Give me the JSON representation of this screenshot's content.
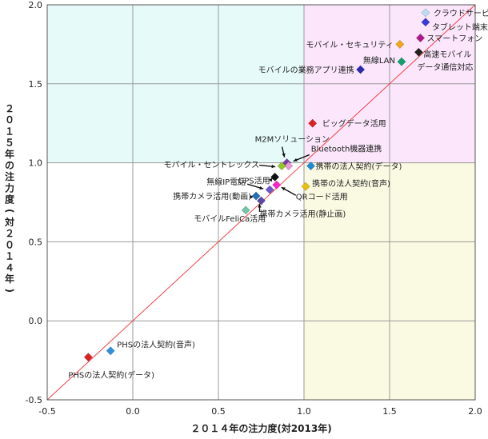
{
  "chart_data": {
    "type": "scatter",
    "xlabel": "２０１４年の注力度(対2013年)",
    "ylabel": "２０１５年の注力度(対２０１４年)",
    "xlim": [
      -0.5,
      2.0
    ],
    "ylim": [
      -0.5,
      2.0
    ],
    "xticks": [
      -0.5,
      0.0,
      0.5,
      1.0,
      1.5,
      2.0
    ],
    "yticks": [
      -0.5,
      0.0,
      0.5,
      1.0,
      1.5,
      2.0
    ],
    "xtick_labels": [
      "-0.5",
      "0.0",
      "0.5",
      "1.0",
      "1.5",
      "2.0"
    ],
    "ytick_labels": [
      "-0.5",
      "0.0",
      "0.5",
      "1.0",
      "1.5",
      "2.0"
    ],
    "quadrants": [
      {
        "x": [
          -0.5,
          1.0
        ],
        "y": [
          1.0,
          2.0
        ],
        "color": "#e6fafa"
      },
      {
        "x": [
          1.0,
          2.0
        ],
        "y": [
          1.0,
          2.0
        ],
        "color": "#fbe6fb"
      },
      {
        "x": [
          1.0,
          2.0
        ],
        "y": [
          -0.5,
          1.0
        ],
        "color": "#fafae2"
      }
    ],
    "reference_line": {
      "from": [
        -0.5,
        -0.5
      ],
      "to": [
        2.0,
        2.0
      ],
      "color": "#ee4444"
    },
    "points": [
      {
        "label": "クラウドサービス",
        "x": 1.71,
        "y": 1.95,
        "color": "#bcdcf2"
      },
      {
        "label": "タブレット端末",
        "x": 1.71,
        "y": 1.89,
        "color": "#3a3ad8"
      },
      {
        "label": "スマートフォン",
        "x": 1.68,
        "y": 1.79,
        "color": "#b0188a"
      },
      {
        "label": "モバイル・セキュリティ",
        "x": 1.56,
        "y": 1.75,
        "color": "#f0a818"
      },
      {
        "label": "高速モバイルデータ通信対応",
        "x": 1.67,
        "y": 1.7,
        "color": "#222222"
      },
      {
        "label": "無線LAN",
        "x": 1.57,
        "y": 1.64,
        "color": "#10a070"
      },
      {
        "label": "モバイルの業務アプリ連携",
        "x": 1.33,
        "y": 1.59,
        "color": "#2a2ab0"
      },
      {
        "label": "ビッグデータ活用",
        "x": 1.05,
        "y": 1.25,
        "color": "#dd2020"
      },
      {
        "label": "M2Mソリューション",
        "x": 0.9,
        "y": 1.0,
        "color": "#7a3aa8"
      },
      {
        "label": "Bluetooth機器連携",
        "x": 0.91,
        "y": 0.98,
        "color": "#e89ad8"
      },
      {
        "label": "モバイル・セントレックス",
        "x": 0.87,
        "y": 0.98,
        "color": "#90c828"
      },
      {
        "label": "携帯の法人契約(データ)",
        "x": 1.04,
        "y": 0.98,
        "color": "#1f8bd8"
      },
      {
        "label": "GPS活用",
        "x": 0.83,
        "y": 0.91,
        "color": "#111111"
      },
      {
        "label": "携帯の法人契約(音声)",
        "x": 1.01,
        "y": 0.85,
        "color": "#e8c010"
      },
      {
        "label": "QRコード活用",
        "x": 0.84,
        "y": 0.86,
        "color": "#ff22cc"
      },
      {
        "label": "無線IP電話",
        "x": 0.8,
        "y": 0.83,
        "color": "#6a5acd"
      },
      {
        "label": "携帯カメラ活用(動画)",
        "x": 0.72,
        "y": 0.79,
        "color": "#2470b8"
      },
      {
        "label": "携帯カメラ活用(静止画)",
        "x": 0.75,
        "y": 0.76,
        "color": "#5a48a8"
      },
      {
        "label": "モバイルFeliCa活用",
        "x": 0.66,
        "y": 0.7,
        "color": "#70c8a8"
      },
      {
        "label": "PHSの法人契約(音声)",
        "x": -0.13,
        "y": -0.19,
        "color": "#3090e0"
      },
      {
        "label": "PHSの法人契約(データ)",
        "x": -0.26,
        "y": -0.23,
        "color": "#dd2020"
      }
    ]
  }
}
